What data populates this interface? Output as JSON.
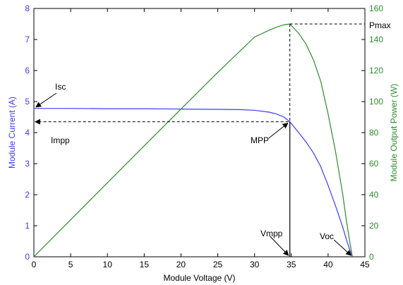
{
  "colors": {
    "current": "#3b3bff",
    "power": "#2e8b2e",
    "axis": "#000000",
    "guide": "#000000"
  },
  "chart_data": {
    "type": "line",
    "xlabel": "Module Voltage (V)",
    "ylabel_left": "Module Current (A)",
    "ylabel_right": "Module Output Power (W)",
    "xlim": [
      0,
      45
    ],
    "ylim_left": [
      0,
      8
    ],
    "ylim_right": [
      0,
      160
    ],
    "x_ticks": [
      "0",
      "5",
      "10",
      "15",
      "20",
      "25",
      "30",
      "35",
      "40",
      "45"
    ],
    "y_left_ticks": [
      "0",
      "1",
      "2",
      "3",
      "4",
      "5",
      "6",
      "7",
      "8"
    ],
    "y_right_ticks": [
      "0",
      "20",
      "40",
      "60",
      "80",
      "100",
      "120",
      "140",
      "160"
    ],
    "grid": false,
    "series": [
      {
        "axis": "left",
        "x": [
          0,
          5,
          10,
          15,
          20,
          25,
          28,
          30,
          32,
          33,
          34,
          34.8,
          36,
          37,
          38,
          39,
          40,
          41,
          42,
          42.5,
          43,
          43.3
        ],
        "y": [
          4.78,
          4.78,
          4.77,
          4.77,
          4.76,
          4.75,
          4.74,
          4.72,
          4.66,
          4.6,
          4.5,
          4.35,
          4.0,
          3.7,
          3.35,
          2.9,
          2.3,
          1.65,
          0.95,
          0.55,
          0.18,
          0.0
        ]
      },
      {
        "axis": "right",
        "x": [
          0,
          5,
          10,
          15,
          20,
          25,
          30,
          32,
          33,
          34,
          34.8,
          36,
          37,
          38,
          39,
          40,
          41,
          42,
          42.5,
          43,
          43.3
        ],
        "y": [
          0,
          23.9,
          47.7,
          71.5,
          95.2,
          118.8,
          141.6,
          146,
          148,
          149.5,
          150,
          144,
          137,
          127,
          113,
          92,
          68,
          40,
          23,
          8,
          0
        ]
      }
    ],
    "annotations": {
      "isc": "Isc",
      "impp": "Impp",
      "mpp": "MPP",
      "vmpp": "Vmpp",
      "voc": "Voc",
      "pmax": "Pmax"
    },
    "key_points": {
      "isc_current": 4.78,
      "impp_current": 4.35,
      "vmpp_voltage": 34.8,
      "voc_voltage": 43.3,
      "pmax_power": 150
    }
  }
}
